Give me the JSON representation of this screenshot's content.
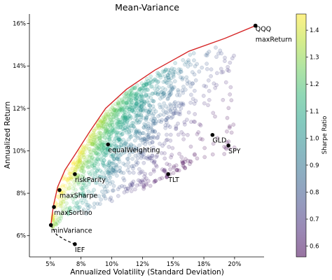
{
  "chart_data": {
    "type": "scatter",
    "title": "Mean-Variance",
    "xlabel": "Annualized Volatility (Standard Deviation)",
    "ylabel": "Annualized Return",
    "xlim": [
      3.3,
      22.4
    ],
    "ylim": [
      5.0,
      16.45
    ],
    "x_ticks": [
      5,
      7.5,
      10,
      12.5,
      15,
      17.5,
      20
    ],
    "x_tick_labels": [
      "5%",
      "8%",
      "10%",
      "12%",
      "15%",
      "18%",
      "20%"
    ],
    "y_ticks": [
      6,
      8,
      10,
      12,
      14,
      16
    ],
    "y_tick_labels": [
      "6%",
      "8%",
      "10%",
      "12%",
      "14%",
      "16%"
    ],
    "grid": false,
    "efficient_frontier": {
      "color": "#d62728",
      "x": [
        5.05,
        5.25,
        5.6,
        6.2,
        7.1,
        8.2,
        9.5,
        11.2,
        13.5,
        16.3,
        19.2,
        21.7
      ],
      "y": [
        6.5,
        7.4,
        8.3,
        9.1,
        9.9,
        10.9,
        12.0,
        12.9,
        13.8,
        14.7,
        15.3,
        15.9
      ]
    },
    "inefficient_frontier": {
      "style": "dashed",
      "color": "#000000",
      "x": [
        5.05,
        5.5,
        6.2,
        7.0
      ],
      "y": [
        6.5,
        6.05,
        5.8,
        5.6
      ]
    },
    "points": [
      {
        "name": "QQQ",
        "x": 21.7,
        "y": 15.9
      },
      {
        "name": "maxReturn",
        "x": 21.7,
        "y": 15.9
      },
      {
        "name": "GLD",
        "x": 18.2,
        "y": 10.75
      },
      {
        "name": "SPY",
        "x": 19.5,
        "y": 10.25
      },
      {
        "name": "equalWeighting",
        "x": 9.7,
        "y": 10.3
      },
      {
        "name": "riskParity",
        "x": 7.0,
        "y": 8.9
      },
      {
        "name": "TLT",
        "x": 14.6,
        "y": 8.9
      },
      {
        "name": "maxSharpe",
        "x": 5.75,
        "y": 8.15
      },
      {
        "name": "maxSortino",
        "x": 5.3,
        "y": 7.35
      },
      {
        "name": "minVariance",
        "x": 5.05,
        "y": 6.5
      },
      {
        "name": "IEF",
        "x": 7.0,
        "y": 5.6
      }
    ],
    "colorbar": {
      "label": "Sharpe Ratio",
      "range": [
        0.56,
        1.46
      ],
      "ticks": [
        0.6,
        0.7,
        0.8,
        0.9,
        1.0,
        1.1,
        1.2,
        1.3,
        1.4
      ],
      "tick_labels": [
        "0.6",
        "0.7",
        "0.8",
        "0.9",
        "1.0",
        "1.1",
        "1.2",
        "1.3",
        "1.4"
      ],
      "colormap": "viridis"
    },
    "colormap_stops": [
      "#440154",
      "#482878",
      "#3e4989",
      "#31688e",
      "#26828e",
      "#1f9e89",
      "#35b779",
      "#6ece58",
      "#b5de2b",
      "#fde725"
    ]
  }
}
